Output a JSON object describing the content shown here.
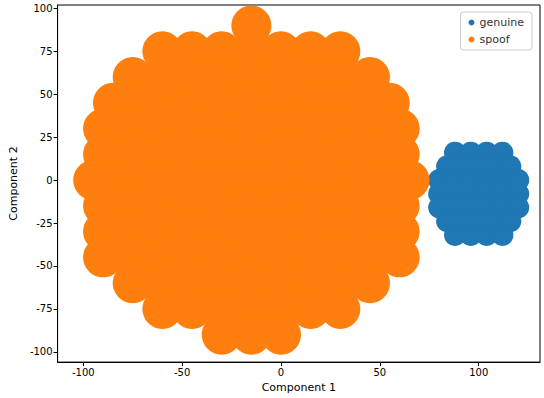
{
  "chart_data": {
    "type": "scatter",
    "x_label": "Component 1",
    "y_label": "Component 2",
    "xlim": [
      -113,
      131
    ],
    "xticks": [
      -100,
      -50,
      0,
      50,
      100
    ],
    "ylim": [
      -106,
      102
    ],
    "yticks": [
      -100,
      -75,
      -50,
      -25,
      0,
      25,
      50,
      75,
      100
    ],
    "grid": false,
    "legend": "upper right",
    "marker": "circle",
    "series": [
      {
        "name": "genuine",
        "color": "#1f77b4",
        "values": [
          [
            88,
            16
          ],
          [
            96,
            16
          ],
          [
            104,
            16
          ],
          [
            112,
            16
          ],
          [
            84,
            8
          ],
          [
            92,
            8
          ],
          [
            100,
            8
          ],
          [
            108,
            8
          ],
          [
            116,
            8
          ],
          [
            80,
            0
          ],
          [
            88,
            0
          ],
          [
            96,
            0
          ],
          [
            104,
            0
          ],
          [
            112,
            0
          ],
          [
            120,
            0
          ],
          [
            80,
            -8
          ],
          [
            88,
            -8
          ],
          [
            96,
            -8
          ],
          [
            104,
            -8
          ],
          [
            112,
            -8
          ],
          [
            120,
            -8
          ],
          [
            80,
            -16
          ],
          [
            88,
            -16
          ],
          [
            96,
            -16
          ],
          [
            104,
            -16
          ],
          [
            112,
            -16
          ],
          [
            120,
            -16
          ],
          [
            84,
            -24
          ],
          [
            92,
            -24
          ],
          [
            100,
            -24
          ],
          [
            108,
            -24
          ],
          [
            116,
            -24
          ],
          [
            88,
            -32
          ],
          [
            96,
            -32
          ],
          [
            104,
            -32
          ],
          [
            112,
            -32
          ]
        ]
      },
      {
        "name": "spoof",
        "color": "#ff7f0e",
        "values": [
          [
            -15,
            90
          ],
          [
            -60,
            75
          ],
          [
            -45,
            75
          ],
          [
            -30,
            75
          ],
          [
            -15,
            75
          ],
          [
            0,
            75
          ],
          [
            15,
            75
          ],
          [
            30,
            75
          ],
          [
            -75,
            60
          ],
          [
            -60,
            60
          ],
          [
            -45,
            60
          ],
          [
            -30,
            60
          ],
          [
            -15,
            60
          ],
          [
            0,
            60
          ],
          [
            15,
            60
          ],
          [
            30,
            60
          ],
          [
            45,
            60
          ],
          [
            -85,
            45
          ],
          [
            -75,
            45
          ],
          [
            -60,
            45
          ],
          [
            -45,
            45
          ],
          [
            -30,
            45
          ],
          [
            -15,
            45
          ],
          [
            0,
            45
          ],
          [
            15,
            45
          ],
          [
            30,
            45
          ],
          [
            45,
            45
          ],
          [
            55,
            45
          ],
          [
            -90,
            30
          ],
          [
            -75,
            30
          ],
          [
            -60,
            30
          ],
          [
            -45,
            30
          ],
          [
            -30,
            30
          ],
          [
            -15,
            30
          ],
          [
            0,
            30
          ],
          [
            15,
            30
          ],
          [
            30,
            30
          ],
          [
            45,
            30
          ],
          [
            60,
            30
          ],
          [
            -90,
            15
          ],
          [
            -75,
            15
          ],
          [
            -60,
            15
          ],
          [
            -45,
            15
          ],
          [
            -30,
            15
          ],
          [
            -15,
            15
          ],
          [
            0,
            15
          ],
          [
            15,
            15
          ],
          [
            30,
            15
          ],
          [
            45,
            15
          ],
          [
            60,
            15
          ],
          [
            -95,
            0
          ],
          [
            -90,
            0
          ],
          [
            -75,
            0
          ],
          [
            -60,
            0
          ],
          [
            -45,
            0
          ],
          [
            -30,
            0
          ],
          [
            -15,
            0
          ],
          [
            0,
            0
          ],
          [
            15,
            0
          ],
          [
            30,
            0
          ],
          [
            45,
            0
          ],
          [
            60,
            0
          ],
          [
            65,
            0
          ],
          [
            -90,
            -15
          ],
          [
            -75,
            -15
          ],
          [
            -60,
            -15
          ],
          [
            -45,
            -15
          ],
          [
            -30,
            -15
          ],
          [
            -15,
            -15
          ],
          [
            0,
            -15
          ],
          [
            15,
            -15
          ],
          [
            30,
            -15
          ],
          [
            45,
            -15
          ],
          [
            60,
            -15
          ],
          [
            -90,
            -30
          ],
          [
            -75,
            -30
          ],
          [
            -60,
            -30
          ],
          [
            -45,
            -30
          ],
          [
            -30,
            -30
          ],
          [
            -15,
            -30
          ],
          [
            0,
            -30
          ],
          [
            15,
            -30
          ],
          [
            30,
            -30
          ],
          [
            45,
            -30
          ],
          [
            60,
            -30
          ],
          [
            -90,
            -45
          ],
          [
            -75,
            -45
          ],
          [
            -60,
            -45
          ],
          [
            -45,
            -45
          ],
          [
            -30,
            -45
          ],
          [
            -15,
            -45
          ],
          [
            0,
            -45
          ],
          [
            15,
            -45
          ],
          [
            30,
            -45
          ],
          [
            45,
            -45
          ],
          [
            60,
            -45
          ],
          [
            -75,
            -60
          ],
          [
            -60,
            -60
          ],
          [
            -45,
            -60
          ],
          [
            -30,
            -60
          ],
          [
            -15,
            -60
          ],
          [
            0,
            -60
          ],
          [
            15,
            -60
          ],
          [
            30,
            -60
          ],
          [
            45,
            -60
          ],
          [
            -60,
            -75
          ],
          [
            -45,
            -75
          ],
          [
            -30,
            -75
          ],
          [
            -15,
            -75
          ],
          [
            0,
            -75
          ],
          [
            15,
            -75
          ],
          [
            30,
            -75
          ],
          [
            -30,
            -90
          ],
          [
            -15,
            -90
          ],
          [
            0,
            -90
          ]
        ]
      }
    ]
  }
}
